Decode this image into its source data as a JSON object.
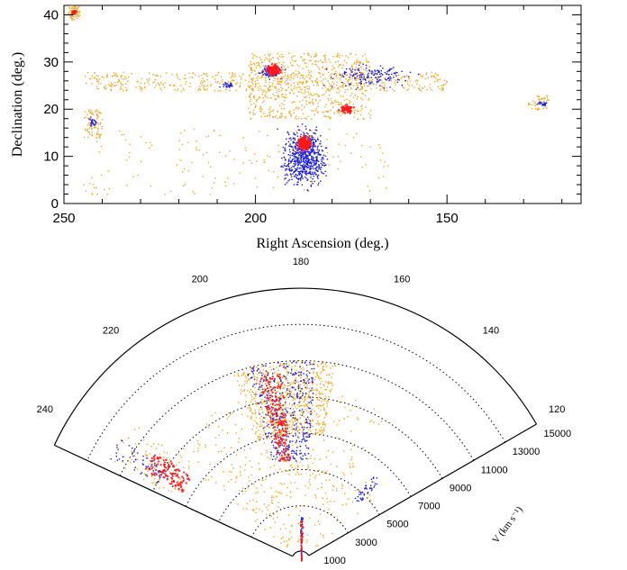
{
  "chart_data": [
    {
      "type": "scatter",
      "xlabel": "Right Ascension (deg.)",
      "ylabel": "Declination (deg.)",
      "xlim": [
        250,
        115
      ],
      "ylim": [
        0,
        42
      ],
      "x_ticks": [
        "250",
        "200",
        "150"
      ],
      "y_ticks": [
        "0",
        "10",
        "20",
        "30",
        "40"
      ],
      "x_tick_values": [
        250,
        200,
        150
      ],
      "y_tick_values": [
        0,
        10,
        20,
        30,
        40
      ],
      "grid": false,
      "series_colors": {
        "orange": "#f5a623",
        "blue": "#1a1adb",
        "red": "#ff1a1a"
      },
      "regions": [
        {
          "color": "orange",
          "ra": [
            246,
            249
          ],
          "dec": [
            39,
            42
          ],
          "n": 60
        },
        {
          "color": "orange",
          "ra": [
            240,
            245
          ],
          "dec": [
            14,
            20
          ],
          "n": 80
        },
        {
          "color": "orange",
          "ra": [
            150,
            245
          ],
          "dec": [
            24,
            28
          ],
          "n": 500
        },
        {
          "color": "orange",
          "ra": [
            170,
            202
          ],
          "dec": [
            18,
            32
          ],
          "n": 650
        },
        {
          "color": "orange",
          "ra": [
            165,
            245
          ],
          "dec": [
            2,
            16
          ],
          "n": 160
        },
        {
          "color": "orange",
          "ra": [
            123,
            129
          ],
          "dec": [
            20,
            23
          ],
          "n": 40
        },
        {
          "color": "blue",
          "ra": [
            180,
            195
          ],
          "dec": [
            2,
            18
          ],
          "n": 650
        },
        {
          "color": "blue",
          "ra": [
            192,
            200
          ],
          "dec": [
            26,
            30
          ],
          "n": 90
        },
        {
          "color": "blue",
          "ra": [
            155,
            185
          ],
          "dec": [
            24,
            30
          ],
          "n": 160
        },
        {
          "color": "blue",
          "ra": [
            205,
            210
          ],
          "dec": [
            24.5,
            26
          ],
          "n": 30
        },
        {
          "color": "blue",
          "ra": [
            241,
            244
          ],
          "dec": [
            16,
            19
          ],
          "n": 25
        },
        {
          "color": "blue",
          "ra": [
            123,
            127
          ],
          "dec": [
            20.5,
            22
          ],
          "n": 25
        },
        {
          "color": "red",
          "ra": [
            185,
            190
          ],
          "dec": [
            11,
            15
          ],
          "n": 160
        },
        {
          "color": "red",
          "ra": [
            193,
            198
          ],
          "dec": [
            27,
            30
          ],
          "n": 120
        },
        {
          "color": "red",
          "ra": [
            174,
            179
          ],
          "dec": [
            19,
            21.5
          ],
          "n": 60
        },
        {
          "color": "red",
          "ra": [
            246.5,
            248.5
          ],
          "dec": [
            40,
            41.5
          ],
          "n": 25
        }
      ]
    },
    {
      "type": "scatter",
      "projection": "polar wedge (RA angle vs velocity radius)",
      "radial_label": "V (km s⁻¹)",
      "angle_range": [
        120,
        245
      ],
      "angle_ticks": [
        "120",
        "140",
        "160",
        "180",
        "200",
        "220",
        "240"
      ],
      "angle_tick_values": [
        120,
        140,
        160,
        180,
        200,
        220,
        240
      ],
      "radial_ticks": [
        "1000",
        "3000",
        "5000",
        "7000",
        "9000",
        "11000",
        "13000",
        "15000"
      ],
      "radial_tick_values": [
        1000,
        3000,
        5000,
        7000,
        9000,
        11000,
        13000,
        15000
      ],
      "radial_max": 15000,
      "dotted_rings": [
        3000,
        5000,
        7000,
        9000,
        11000,
        13000
      ],
      "regions": [
        {
          "color": "orange",
          "angle": [
            170,
            200
          ],
          "v": [
            7000,
            11000
          ],
          "n": 650
        },
        {
          "color": "orange",
          "angle": [
            150,
            230
          ],
          "v": [
            3500,
            9500
          ],
          "n": 260
        },
        {
          "color": "orange",
          "angle": [
            130,
            230
          ],
          "v": [
            1000,
            6000
          ],
          "n": 120
        },
        {
          "color": "orange",
          "angle": [
            230,
            243
          ],
          "v": [
            8000,
            12000
          ],
          "n": 80
        },
        {
          "color": "blue",
          "angle": [
            176,
            196
          ],
          "v": [
            5500,
            11000
          ],
          "n": 400
        },
        {
          "color": "blue",
          "angle": [
            135,
            140
          ],
          "v": [
            4500,
            6200
          ],
          "n": 40
        },
        {
          "color": "blue",
          "angle": [
            236,
            242
          ],
          "v": [
            8500,
            12000
          ],
          "n": 60
        },
        {
          "color": "blue",
          "angle": [
            178,
            182
          ],
          "v": [
            0,
            2400
          ],
          "n": 60
        },
        {
          "color": "red",
          "angle": [
            186,
            193
          ],
          "v": [
            5500,
            10500
          ],
          "n": 200
        },
        {
          "color": "red",
          "angle": [
            233,
            240
          ],
          "v": [
            7500,
            10000
          ],
          "n": 130
        },
        {
          "color": "red",
          "angle": [
            178,
            182
          ],
          "v": [
            0,
            2200
          ],
          "n": 40
        }
      ]
    }
  ]
}
